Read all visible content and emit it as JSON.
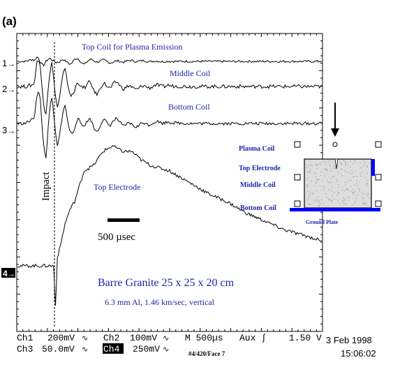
{
  "figure_label": "(a)",
  "chart_data": {
    "type": "line",
    "title": "",
    "traces": [
      {
        "channel": "1",
        "name": "Top Coil for Plasma Emission",
        "scale": "200mV",
        "color": "#000000",
        "x": [
          0,
          80,
          160,
          240,
          300,
          360,
          420,
          500,
          600,
          700,
          800,
          1000,
          1200,
          1500,
          1800,
          2000,
          2400,
          2800,
          3200
        ],
        "y": [
          0,
          0,
          0.2,
          -0.3,
          0.35,
          -0.25,
          0.3,
          -0.2,
          0.15,
          -0.1,
          0.1,
          -0.05,
          0.05,
          0,
          0,
          0,
          0,
          0,
          0
        ]
      },
      {
        "channel": "2",
        "name": "Middle Coil",
        "scale": "100mV",
        "color": "#000000",
        "x": [
          0,
          80,
          160,
          240,
          300,
          360,
          420,
          500,
          600,
          700,
          800,
          1000,
          1200,
          1500,
          1800,
          2000,
          2400,
          2800,
          3200
        ],
        "y": [
          0,
          0,
          0.1,
          0.8,
          -0.9,
          0.7,
          -0.6,
          0.5,
          -0.4,
          0.3,
          -0.25,
          0.15,
          -0.1,
          0.05,
          0,
          0,
          0,
          0,
          0
        ]
      },
      {
        "channel": "3",
        "name": "Bottom Coil",
        "scale": "50.0mV",
        "color": "#000000",
        "x": [
          0,
          80,
          160,
          240,
          300,
          360,
          420,
          500,
          600,
          700,
          800,
          1000,
          1200,
          1500,
          1800,
          2000,
          2400,
          2800,
          3200
        ],
        "y": [
          0,
          0,
          0.3,
          1.2,
          -1.6,
          1.0,
          -0.8,
          0.6,
          -0.5,
          0.35,
          -0.3,
          0.2,
          -0.15,
          0.1,
          0,
          0,
          0,
          0,
          0
        ]
      },
      {
        "channel": "4",
        "name": "Top Electrode",
        "scale": "250mV",
        "color": "#000000",
        "x": [
          0,
          200,
          380,
          400,
          420,
          450,
          500,
          550,
          600,
          700,
          800,
          900,
          1000,
          1100,
          1200,
          1300,
          1400,
          1600,
          1800,
          2000,
          2200,
          2400,
          2600,
          2800,
          3000,
          3200
        ],
        "y": [
          0,
          0,
          0,
          -1.4,
          0.3,
          0.7,
          1.5,
          2.0,
          2.3,
          3.4,
          3.6,
          4.1,
          4.3,
          4.1,
          4.1,
          3.8,
          3.6,
          3.4,
          3.0,
          2.6,
          2.3,
          1.9,
          1.6,
          1.3,
          1.1,
          0.9
        ]
      }
    ],
    "annotations": {
      "impact": "Impact",
      "scale_bar": "500 µsec",
      "specimen": "Barre Granite 25 x 25 x 20 cm",
      "projectile": "6.3 mm Al, 1.46 km/sec, vertical"
    },
    "channel_markers": [
      "1",
      "2",
      "3",
      "4"
    ],
    "grid": false
  },
  "inset": {
    "labels": [
      "Plasma Coil",
      "Top Electrode",
      "Middle Coil",
      "Bottom Coil"
    ],
    "ground_plate": "Ground Plate"
  },
  "readout": {
    "ch1": "Ch1",
    "ch1_scale": "200mV",
    "ch2": "Ch2",
    "ch2_scale": "100mV",
    "ch3": "Ch3",
    "ch3_scale": "50.0mV",
    "ch4": "Ch4",
    "ch4_scale": "250mV",
    "timebase": "M 500µs",
    "trigger": "Aux",
    "trigger_level": "1.50 V",
    "date": "3 Feb 1998",
    "time": "15:06:02",
    "record_id": "#4/420/Face 7"
  },
  "colors": {
    "trace": "#000000",
    "annotation_blue": "#1f24a8",
    "inset_blue": "#0000ff",
    "inset_fill": "#dddddd"
  }
}
